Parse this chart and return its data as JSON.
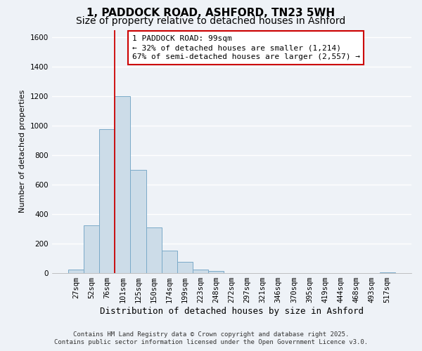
{
  "title": "1, PADDOCK ROAD, ASHFORD, TN23 5WH",
  "subtitle": "Size of property relative to detached houses in Ashford",
  "xlabel": "Distribution of detached houses by size in Ashford",
  "ylabel": "Number of detached properties",
  "bar_color": "#ccdce8",
  "bar_edge_color": "#7aaac8",
  "categories": [
    "27sqm",
    "52sqm",
    "76sqm",
    "101sqm",
    "125sqm",
    "150sqm",
    "174sqm",
    "199sqm",
    "223sqm",
    "248sqm",
    "272sqm",
    "297sqm",
    "321sqm",
    "346sqm",
    "370sqm",
    "395sqm",
    "419sqm",
    "444sqm",
    "468sqm",
    "493sqm",
    "517sqm"
  ],
  "values": [
    25,
    325,
    975,
    1200,
    700,
    310,
    155,
    75,
    25,
    15,
    0,
    0,
    0,
    0,
    0,
    0,
    0,
    0,
    0,
    0,
    5
  ],
  "ylim": [
    0,
    1650
  ],
  "yticks": [
    0,
    200,
    400,
    600,
    800,
    1000,
    1200,
    1400,
    1600
  ],
  "vline_index": 3,
  "vline_color": "#cc0000",
  "annotation_line1": "1 PADDOCK ROAD: 99sqm",
  "annotation_line2": "← 32% of detached houses are smaller (1,214)",
  "annotation_line3": "67% of semi-detached houses are larger (2,557) →",
  "annotation_box_color": "#ffffff",
  "annotation_box_edge": "#cc0000",
  "footer_line1": "Contains HM Land Registry data © Crown copyright and database right 2025.",
  "footer_line2": "Contains public sector information licensed under the Open Government Licence v3.0.",
  "background_color": "#eef2f7",
  "grid_color": "#ffffff",
  "title_fontsize": 11,
  "subtitle_fontsize": 10,
  "xlabel_fontsize": 9,
  "ylabel_fontsize": 8,
  "tick_fontsize": 7.5,
  "annotation_fontsize": 8,
  "footer_fontsize": 6.5
}
